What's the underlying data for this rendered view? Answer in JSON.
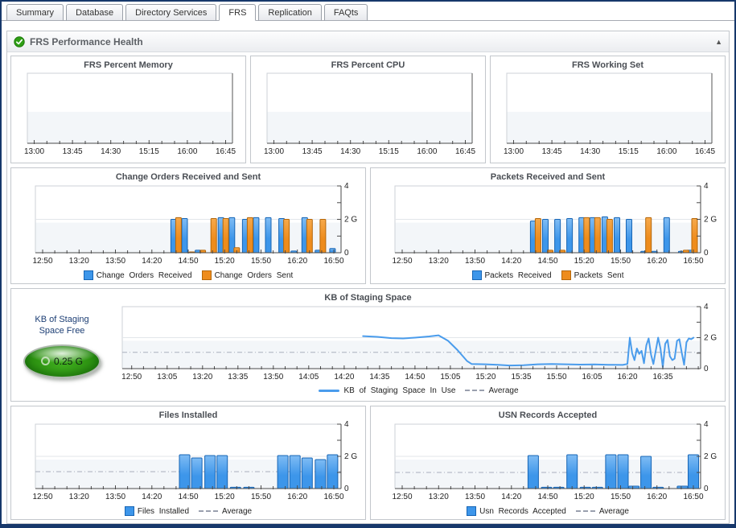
{
  "window": {
    "tabs": [
      {
        "label": "Summary",
        "active": false
      },
      {
        "label": "Database",
        "active": false
      },
      {
        "label": "Directory Services",
        "active": false
      },
      {
        "label": "FRS",
        "active": true
      },
      {
        "label": "Replication",
        "active": false
      },
      {
        "label": "FAQts",
        "active": false
      }
    ]
  },
  "section": {
    "title": "FRS Performance Health",
    "status": "ok",
    "collapse_icon": "▲"
  },
  "gauge": {
    "label_line1": "KB of Staging",
    "label_line2": "Space Free",
    "value": "0.25 G"
  },
  "colors": {
    "frame_navy": "#17386B",
    "status_green": "#2E9E14",
    "bar_blue": "#3D96EA",
    "bar_blue_light": "#7FBCF4",
    "bar_blue_border": "#1765B5",
    "bar_orange": "#EE8C1C",
    "bar_orange_light": "#F6A94B",
    "bar_orange_border": "#B5670A",
    "line_blue": "#4A9CEC",
    "average_gray": "#A9AFBD",
    "band_gray": "#F3F6F9",
    "gauge_green": "#2E9412"
  },
  "chart_data": [
    {
      "id": "frs-percent-memory",
      "type": "line",
      "title": "FRS Percent Memory",
      "x_ticks": [
        "13:00",
        "13:45",
        "14:30",
        "15:15",
        "16:00",
        "16:45"
      ],
      "x_domain": [
        "12:52",
        "16:53"
      ],
      "ylim": [
        0,
        4
      ],
      "y_labels": null,
      "series": []
    },
    {
      "id": "frs-percent-cpu",
      "type": "line",
      "title": "FRS Percent CPU",
      "x_ticks": [
        "13:00",
        "13:45",
        "14:30",
        "15:15",
        "16:00",
        "16:45"
      ],
      "x_domain": [
        "12:52",
        "16:53"
      ],
      "ylim": [
        0,
        4
      ],
      "y_labels": null,
      "series": []
    },
    {
      "id": "frs-working-set",
      "type": "line",
      "title": "FRS Working Set",
      "x_ticks": [
        "13:00",
        "13:45",
        "14:30",
        "15:15",
        "16:00",
        "16:45"
      ],
      "x_domain": [
        "12:52",
        "16:53"
      ],
      "ylim": [
        0,
        4
      ],
      "y_labels": null,
      "series": []
    },
    {
      "id": "change-orders",
      "type": "bar",
      "title": "Change Orders Received and Sent",
      "x_ticks": [
        "12:50",
        "13:20",
        "13:50",
        "14:20",
        "14:50",
        "15:20",
        "15:50",
        "16:20",
        "16:50"
      ],
      "x_domain": [
        "12:44",
        "16:56"
      ],
      "ylim": [
        0,
        4
      ],
      "y_labels": {
        "0": "0",
        "2": "2 G",
        "4": "4"
      },
      "series": [
        {
          "name": "Change Orders Received",
          "color": "#3D96EA",
          "color_light": "#7FBCF4",
          "border": "#1765B5",
          "points": [
            [
              "14:38",
              2.0
            ],
            [
              "14:47",
              2.05
            ],
            [
              "14:58",
              0.15
            ],
            [
              "15:17",
              2.1
            ],
            [
              "15:26",
              2.1
            ],
            [
              "15:37",
              2.0
            ],
            [
              "15:46",
              2.1
            ],
            [
              "15:56",
              2.1
            ],
            [
              "16:07",
              2.05
            ],
            [
              "16:17",
              0.1
            ],
            [
              "16:26",
              2.1
            ],
            [
              "16:37",
              0.15
            ],
            [
              "16:49",
              0.25
            ]
          ]
        },
        {
          "name": "Change Orders Sent",
          "color": "#EE8C1C",
          "color_light": "#F6A94B",
          "border": "#B5670A",
          "points": [
            [
              "14:42",
              2.1
            ],
            [
              "14:53",
              0.05
            ],
            [
              "15:02",
              0.15
            ],
            [
              "15:11",
              2.05
            ],
            [
              "15:21",
              2.05
            ],
            [
              "15:30",
              0.3
            ],
            [
              "15:41",
              2.1
            ],
            [
              "16:11",
              2.0
            ],
            [
              "16:30",
              2.0
            ],
            [
              "16:41",
              2.0
            ]
          ]
        }
      ]
    },
    {
      "id": "packets",
      "type": "bar",
      "title": "Packets Received and Sent",
      "x_ticks": [
        "12:50",
        "13:20",
        "13:50",
        "14:20",
        "14:50",
        "15:20",
        "15:50",
        "16:20",
        "16:50"
      ],
      "x_domain": [
        "12:44",
        "16:56"
      ],
      "ylim": [
        0,
        4
      ],
      "y_labels": {
        "0": "0",
        "2": "2 G",
        "4": "4"
      },
      "series": [
        {
          "name": "Packets Received",
          "color": "#3D96EA",
          "color_light": "#7FBCF4",
          "border": "#1765B5",
          "points": [
            [
              "14:38",
              1.9
            ],
            [
              "14:48",
              2.0
            ],
            [
              "14:58",
              2.0
            ],
            [
              "15:08",
              2.05
            ],
            [
              "15:18",
              2.1
            ],
            [
              "15:27",
              2.1
            ],
            [
              "15:37",
              2.15
            ],
            [
              "15:47",
              2.1
            ],
            [
              "15:57",
              2.0
            ],
            [
              "16:09",
              0.08
            ],
            [
              "16:18",
              0.08
            ],
            [
              "16:28",
              2.1
            ],
            [
              "16:40",
              0.08
            ],
            [
              "16:47",
              0.15
            ]
          ]
        },
        {
          "name": "Packets Sent",
          "color": "#EE8C1C",
          "color_light": "#F6A94B",
          "border": "#B5670A",
          "points": [
            [
              "14:42",
              2.05
            ],
            [
              "14:52",
              0.15
            ],
            [
              "15:02",
              0.15
            ],
            [
              "15:22",
              2.1
            ],
            [
              "15:31",
              2.1
            ],
            [
              "15:41",
              2.0
            ],
            [
              "16:13",
              2.1
            ],
            [
              "16:44",
              0.15
            ],
            [
              "16:51",
              2.05
            ]
          ]
        }
      ]
    },
    {
      "id": "kb-staging",
      "type": "line",
      "title": "KB of Staging Space",
      "x_ticks": [
        "12:50",
        "13:05",
        "13:20",
        "13:35",
        "13:50",
        "14:05",
        "14:20",
        "14:35",
        "14:50",
        "15:05",
        "15:20",
        "15:35",
        "15:50",
        "16:05",
        "16:20",
        "16:35"
      ],
      "x_domain": [
        "12:46",
        "16:51"
      ],
      "ylim": [
        0,
        4
      ],
      "y_labels": {
        "0": "0",
        "2": "2 G",
        "4": "4"
      },
      "average": 1.05,
      "average_label": "Average",
      "series": [
        {
          "name": "KB of Staging Space In Use",
          "color": "#4A9CEC",
          "points": [
            [
              "14:28",
              2.1
            ],
            [
              "14:34",
              2.05
            ],
            [
              "14:40",
              1.97
            ],
            [
              "14:45",
              1.95
            ],
            [
              "14:50",
              2.0
            ],
            [
              "14:56",
              2.08
            ],
            [
              "15:00",
              2.15
            ],
            [
              "15:04",
              1.8
            ],
            [
              "15:08",
              1.2
            ],
            [
              "15:12",
              0.5
            ],
            [
              "15:14",
              0.3
            ],
            [
              "15:20",
              0.28
            ],
            [
              "15:25",
              0.25
            ],
            [
              "15:30",
              0.2
            ],
            [
              "15:36",
              0.22
            ],
            [
              "15:42",
              0.28
            ],
            [
              "15:48",
              0.3
            ],
            [
              "15:54",
              0.28
            ],
            [
              "16:00",
              0.26
            ],
            [
              "16:06",
              0.27
            ],
            [
              "16:12",
              0.25
            ],
            [
              "16:18",
              0.24
            ],
            [
              "16:20",
              0.3
            ],
            [
              "16:21",
              2.0
            ],
            [
              "16:22",
              1.0
            ],
            [
              "16:23",
              0.55
            ],
            [
              "16:24",
              1.3
            ],
            [
              "16:25",
              0.95
            ],
            [
              "16:26",
              1.15
            ],
            [
              "16:27",
              0.35
            ],
            [
              "16:28",
              1.5
            ],
            [
              "16:29",
              1.95
            ],
            [
              "16:30",
              0.9
            ],
            [
              "16:31",
              0.3
            ],
            [
              "16:32",
              1.15
            ],
            [
              "16:33",
              2.0
            ],
            [
              "16:34",
              1.3
            ],
            [
              "16:35",
              0.1
            ],
            [
              "16:36",
              1.6
            ],
            [
              "16:37",
              1.85
            ],
            [
              "16:38",
              0.8
            ],
            [
              "16:39",
              0.55
            ],
            [
              "16:40",
              0.65
            ],
            [
              "16:41",
              1.8
            ],
            [
              "16:42",
              1.9
            ],
            [
              "16:43",
              1.05
            ],
            [
              "16:44",
              0.25
            ],
            [
              "16:45",
              1.7
            ],
            [
              "16:46",
              1.95
            ],
            [
              "16:47",
              1.9
            ],
            [
              "16:48",
              2.0
            ]
          ]
        }
      ]
    },
    {
      "id": "files-installed",
      "type": "bar",
      "title": "Files Installed",
      "x_ticks": [
        "12:50",
        "13:20",
        "13:50",
        "14:20",
        "14:50",
        "15:20",
        "15:50",
        "16:20",
        "16:50"
      ],
      "x_domain": [
        "12:44",
        "16:56"
      ],
      "ylim": [
        0,
        4
      ],
      "y_labels": {
        "0": "0",
        "2": "2 G",
        "4": "4"
      },
      "average": 1.05,
      "average_label": "Average",
      "series": [
        {
          "name": "Files Installed",
          "color": "#3D96EA",
          "color_light": "#7FBCF4",
          "border": "#1765B5",
          "points": [
            [
              "14:47",
              2.1
            ],
            [
              "14:57",
              1.9
            ],
            [
              "15:08",
              2.05
            ],
            [
              "15:18",
              2.05
            ],
            [
              "15:29",
              0.08
            ],
            [
              "15:40",
              0.08
            ],
            [
              "16:08",
              2.05
            ],
            [
              "16:18",
              2.05
            ],
            [
              "16:28",
              1.9
            ],
            [
              "16:39",
              1.8
            ],
            [
              "16:49",
              2.1
            ]
          ]
        }
      ]
    },
    {
      "id": "usn-records",
      "type": "bar",
      "title": "USN Records Accepted",
      "x_ticks": [
        "12:50",
        "13:20",
        "13:50",
        "14:20",
        "14:50",
        "15:20",
        "15:50",
        "16:20",
        "16:50"
      ],
      "x_domain": [
        "12:44",
        "16:56"
      ],
      "ylim": [
        0,
        4
      ],
      "y_labels": {
        "0": "0",
        "2": "2 G",
        "4": "4"
      },
      "average": 1.0,
      "average_label": "Average",
      "series": [
        {
          "name": "Usn Records Accepted",
          "color": "#3D96EA",
          "color_light": "#7FBCF4",
          "border": "#1765B5",
          "points": [
            [
              "14:38",
              2.05
            ],
            [
              "14:49",
              0.08
            ],
            [
              "14:59",
              0.08
            ],
            [
              "15:10",
              2.1
            ],
            [
              "15:21",
              0.08
            ],
            [
              "15:31",
              0.08
            ],
            [
              "15:42",
              2.1
            ],
            [
              "15:52",
              2.1
            ],
            [
              "16:01",
              0.15
            ],
            [
              "16:11",
              2.0
            ],
            [
              "16:21",
              0.08
            ],
            [
              "16:41",
              0.15
            ],
            [
              "16:50",
              2.1
            ]
          ]
        }
      ]
    }
  ]
}
